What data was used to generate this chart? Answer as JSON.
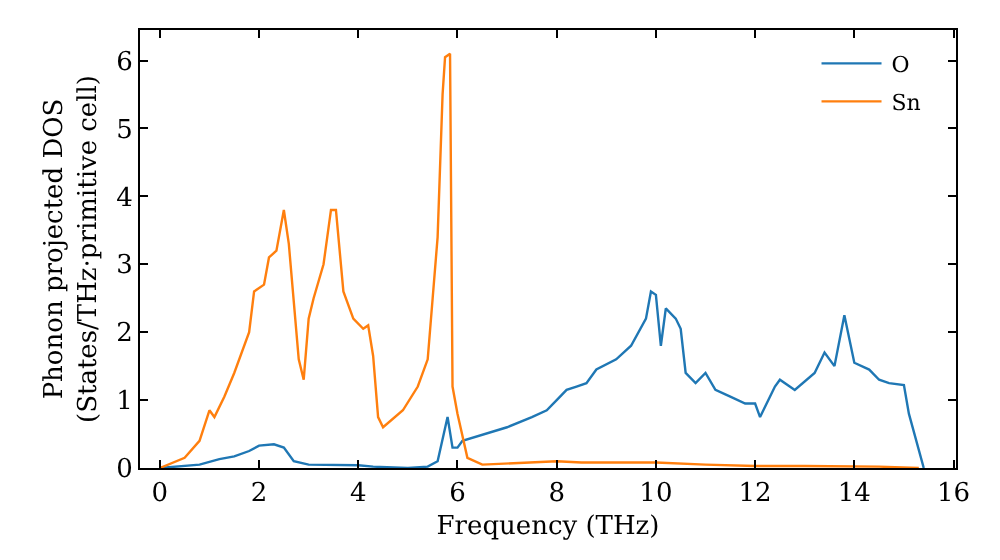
{
  "chart_data": {
    "type": "line",
    "xlabel": "Frequency (THz)",
    "ylabel": "Phonon projected DOS\n(States/THz·primitive cell)",
    "xlim": [
      -0.4,
      16.05
    ],
    "ylim": [
      0,
      6.45
    ],
    "xticks": [
      0,
      2,
      4,
      6,
      8,
      10,
      12,
      14,
      16
    ],
    "yticks": [
      0,
      1,
      2,
      3,
      4,
      5,
      6
    ],
    "legend": "top right",
    "series": [
      {
        "name": "O",
        "color": "#1f77b4",
        "x": [
          0,
          0.8,
          1.2,
          1.5,
          1.8,
          2.0,
          2.3,
          2.5,
          2.7,
          3.0,
          4.0,
          4.3,
          5.0,
          5.4,
          5.6,
          5.8,
          5.9,
          6.0,
          6.1,
          7.0,
          7.5,
          7.8,
          8.0,
          8.2,
          8.4,
          8.6,
          8.8,
          9.2,
          9.5,
          9.8,
          9.9,
          10.0,
          10.1,
          10.2,
          10.4,
          10.5,
          10.6,
          10.8,
          11.0,
          11.2,
          11.5,
          11.8,
          12.0,
          12.1,
          12.4,
          12.5,
          12.8,
          13.2,
          13.4,
          13.6,
          13.8,
          14.0,
          14.3,
          14.5,
          14.7,
          15.0,
          15.1,
          15.4
        ],
        "values": [
          0,
          0.05,
          0.13,
          0.17,
          0.25,
          0.33,
          0.35,
          0.3,
          0.1,
          0.05,
          0.04,
          0.02,
          0,
          0.02,
          0.1,
          0.75,
          0.3,
          0.3,
          0.4,
          0.6,
          0.75,
          0.85,
          1.0,
          1.15,
          1.2,
          1.25,
          1.45,
          1.6,
          1.8,
          2.2,
          2.6,
          2.55,
          1.8,
          2.35,
          2.2,
          2.05,
          1.4,
          1.25,
          1.4,
          1.15,
          1.05,
          0.95,
          0.95,
          0.75,
          1.2,
          1.3,
          1.15,
          1.4,
          1.7,
          1.5,
          2.25,
          1.55,
          1.45,
          1.3,
          1.25,
          1.22,
          0.8,
          0
        ]
      },
      {
        "name": "Sn",
        "color": "#ff7f0e",
        "x": [
          0,
          0.5,
          0.8,
          1.0,
          1.1,
          1.3,
          1.5,
          1.8,
          1.9,
          2.1,
          2.2,
          2.35,
          2.5,
          2.6,
          2.8,
          2.9,
          3.0,
          3.1,
          3.3,
          3.45,
          3.55,
          3.7,
          3.9,
          4.1,
          4.2,
          4.3,
          4.4,
          4.5,
          4.9,
          5.2,
          5.4,
          5.5,
          5.6,
          5.7,
          5.75,
          5.85,
          5.9,
          6.0,
          6.2,
          6.5,
          8.0,
          8.5,
          10.0,
          11.0,
          12.0,
          13.0,
          14.5,
          15.3
        ],
        "values": [
          0,
          0.15,
          0.4,
          0.85,
          0.75,
          1.05,
          1.4,
          2.0,
          2.6,
          2.7,
          3.1,
          3.2,
          3.8,
          3.3,
          1.6,
          1.3,
          2.2,
          2.5,
          3.0,
          3.8,
          3.8,
          2.6,
          2.2,
          2.05,
          2.1,
          1.65,
          0.75,
          0.6,
          0.85,
          1.2,
          1.6,
          2.5,
          3.4,
          5.5,
          6.05,
          6.1,
          1.2,
          0.8,
          0.15,
          0.05,
          0.1,
          0.08,
          0.08,
          0.05,
          0.03,
          0.03,
          0.02,
          0
        ]
      }
    ]
  }
}
